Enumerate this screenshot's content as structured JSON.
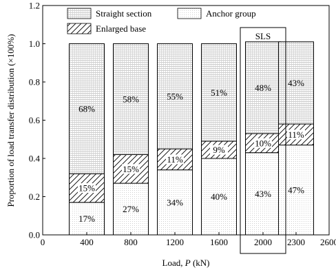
{
  "chart_data": {
    "type": "bar",
    "stacked": true,
    "categories": [
      "400",
      "800",
      "1200",
      "1600",
      "2000",
      "2300"
    ],
    "xlabel_prefix": "Load, ",
    "xlabel_var": "P",
    "xlabel_suffix": " (kN)",
    "ylabel": "Proportion of load transfer distribution (×100%)",
    "x_axis": {
      "min": 0,
      "max": 2600,
      "ticks": [
        0,
        400,
        800,
        1200,
        1600,
        2000,
        2300,
        2600
      ],
      "tick_labels": [
        "0",
        "400",
        "800",
        "1200",
        "1600",
        "2000",
        "2300",
        "2600"
      ]
    },
    "y_axis": {
      "min": 0.0,
      "max": 1.2,
      "ticks": [
        0.0,
        0.2,
        0.4,
        0.6,
        0.8,
        1.0,
        1.2
      ],
      "tick_labels": [
        "0.0",
        "0.2",
        "0.4",
        "0.6",
        "0.8",
        "1.0",
        "1.2"
      ]
    },
    "series": [
      {
        "name": "Anchor group",
        "fill": "dots",
        "values": [
          0.17,
          0.27,
          0.34,
          0.4,
          0.43,
          0.47
        ],
        "labels": [
          "17%",
          "27%",
          "34%",
          "40%",
          "43%",
          "47%"
        ]
      },
      {
        "name": "Enlarged base",
        "fill": "hatch",
        "values": [
          0.15,
          0.15,
          0.11,
          0.09,
          0.1,
          0.11
        ],
        "labels": [
          "15%",
          "15%",
          "11%",
          "9%",
          "10%",
          "11%"
        ]
      },
      {
        "name": "Straight section",
        "fill": "grid",
        "values": [
          0.68,
          0.58,
          0.55,
          0.51,
          0.48,
          0.43
        ],
        "labels": [
          "68%",
          "58%",
          "55%",
          "51%",
          "48%",
          "43%"
        ]
      }
    ],
    "legend": {
      "placement": "top-left",
      "order": [
        "Straight section",
        "Anchor group",
        "Enlarged base"
      ]
    },
    "annotation": {
      "text": "SLS",
      "category": "2000"
    },
    "grid": false
  }
}
